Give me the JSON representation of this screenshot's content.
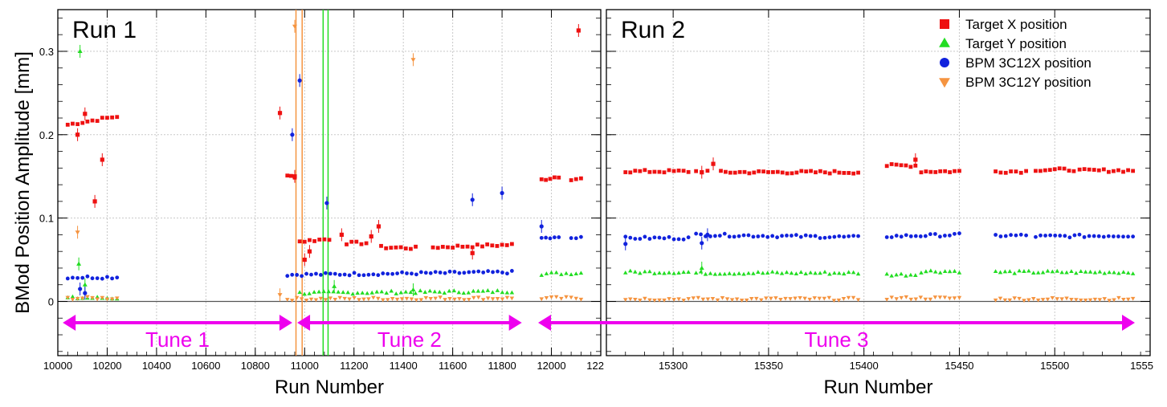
{
  "chart_data": {
    "type": "scatter",
    "ylabel": "BMod Position Amplitude [mm]",
    "ylim": [
      -0.065,
      0.35
    ],
    "yticks": [
      "0",
      "0.1",
      "0.2",
      "0.3"
    ],
    "grid": true,
    "legend": {
      "placement": "top-right",
      "entries": [
        {
          "name": "Target X position",
          "color": "#ee1111",
          "marker": "square"
        },
        {
          "name": "Target Y position",
          "color": "#22dd22",
          "marker": "triangle-up"
        },
        {
          "name": "BPM 3C12X position",
          "color": "#1122dd",
          "marker": "circle"
        },
        {
          "name": "BPM 3C12Y position",
          "color": "#f59440",
          "marker": "triangle-down"
        }
      ]
    },
    "panels": [
      {
        "run_label": "Run 1",
        "xlabel": "Run Number",
        "xlim": [
          10000,
          12200
        ],
        "xticks": [
          "10000",
          "10200",
          "10400",
          "10600",
          "10800",
          "11000",
          "11200",
          "11400",
          "11600",
          "11800",
          "12000",
          "122"
        ],
        "series": [
          {
            "name": "Target X position",
            "segments": [
              {
                "x": [
                  10040,
                  10240
                ],
                "y": [
                  0.212,
                  0.222
                ]
              },
              {
                "x": [
                  10930,
                  10960
                ],
                "y": [
                  0.15,
                  0.15
                ]
              },
              {
                "x": [
                  10980,
                  11100
                ],
                "y": [
                  0.072,
                  0.075
                ]
              },
              {
                "x": [
                  11170,
                  11250
                ],
                "y": [
                  0.07,
                  0.07
                ]
              },
              {
                "x": [
                  11310,
                  11450
                ],
                "y": [
                  0.065,
                  0.064
                ]
              },
              {
                "x": [
                  11520,
                  11840
                ],
                "y": [
                  0.065,
                  0.068
                ]
              },
              {
                "x": [
                  11960,
                  12030
                ],
                "y": [
                  0.146,
                  0.15
                ]
              },
              {
                "x": [
                  12080,
                  12120
                ],
                "y": [
                  0.147,
                  0.147
                ]
              }
            ],
            "points": [
              {
                "x": 10080,
                "y": 0.2
              },
              {
                "x": 10110,
                "y": 0.225
              },
              {
                "x": 10150,
                "y": 0.12
              },
              {
                "x": 10180,
                "y": 0.17
              },
              {
                "x": 10900,
                "y": 0.226
              },
              {
                "x": 10960,
                "y": 0.15
              },
              {
                "x": 11000,
                "y": 0.05
              },
              {
                "x": 11020,
                "y": 0.06
              },
              {
                "x": 11150,
                "y": 0.08
              },
              {
                "x": 11270,
                "y": 0.078
              },
              {
                "x": 11300,
                "y": 0.09
              },
              {
                "x": 11680,
                "y": 0.058
              },
              {
                "x": 12110,
                "y": 0.325
              }
            ]
          },
          {
            "name": "Target Y position",
            "segments": [
              {
                "x": [
                  10040,
                  10240
                ],
                "y": [
                  0.004,
                  0.004
                ]
              },
              {
                "x": [
                  10980,
                  11840
                ],
                "y": [
                  0.01,
                  0.012
                ]
              },
              {
                "x": [
                  11960,
                  12120
                ],
                "y": [
                  0.033,
                  0.034
                ]
              }
            ],
            "points": [
              {
                "x": 10090,
                "y": 0.3
              },
              {
                "x": 10085,
                "y": 0.045
              },
              {
                "x": 10110,
                "y": 0.02
              },
              {
                "x": 11120,
                "y": 0.018
              },
              {
                "x": 11440,
                "y": 0.014
              }
            ]
          },
          {
            "name": "BPM 3C12X position",
            "segments": [
              {
                "x": [
                  10040,
                  10240
                ],
                "y": [
                  0.029,
                  0.029
                ]
              },
              {
                "x": [
                  10930,
                  11840
                ],
                "y": [
                  0.032,
                  0.035
                ]
              },
              {
                "x": [
                  11960,
                  12030
                ],
                "y": [
                  0.076,
                  0.076
                ]
              },
              {
                "x": [
                  12080,
                  12120
                ],
                "y": [
                  0.076,
                  0.076
                ]
              }
            ],
            "points": [
              {
                "x": 10090,
                "y": 0.015
              },
              {
                "x": 10110,
                "y": 0.01
              },
              {
                "x": 10950,
                "y": 0.2
              },
              {
                "x": 10980,
                "y": 0.265
              },
              {
                "x": 11090,
                "y": 0.118
              },
              {
                "x": 11680,
                "y": 0.122
              },
              {
                "x": 11800,
                "y": 0.13
              },
              {
                "x": 11960,
                "y": 0.09
              }
            ]
          },
          {
            "name": "BPM 3C12Y position",
            "segments": [
              {
                "x": [
                  10040,
                  10240
                ],
                "y": [
                  0.004,
                  0.004
                ]
              },
              {
                "x": [
                  10930,
                  11840
                ],
                "y": [
                  0.003,
                  0.004
                ]
              },
              {
                "x": [
                  11960,
                  12120
                ],
                "y": [
                  0.004,
                  0.004
                ]
              }
            ],
            "points": [
              {
                "x": 10080,
                "y": 0.083
              },
              {
                "x": 10960,
                "y": 0.33
              },
              {
                "x": 11440,
                "y": 0.29
              },
              {
                "x": 10900,
                "y": 0.008
              }
            ]
          }
        ],
        "annotations": [
          {
            "label": "Tune 1",
            "from": 10020,
            "to": 10950
          },
          {
            "label": "Tune 2",
            "from": 10970,
            "to": 11880
          }
        ]
      },
      {
        "run_label": "Run 2",
        "xlabel": "Run Number",
        "xlim": [
          15265,
          15550
        ],
        "xticks": [
          "15300",
          "15350",
          "15400",
          "15450",
          "15500",
          "1555"
        ],
        "series": [
          {
            "name": "Target X position",
            "segments": [
              {
                "x": [
                  15275,
                  15308
                ],
                "y": [
                  0.156,
                  0.156
                ]
              },
              {
                "x": [
                  15312,
                  15318
                ],
                "y": [
                  0.156,
                  0.156
                ]
              },
              {
                "x": [
                  15325,
                  15397
                ],
                "y": [
                  0.155,
                  0.155
                ]
              },
              {
                "x": [
                  15412,
                  15427
                ],
                "y": [
                  0.163,
                  0.163
                ]
              },
              {
                "x": [
                  15430,
                  15450
                ],
                "y": [
                  0.156,
                  0.156
                ]
              },
              {
                "x": [
                  15469,
                  15485
                ],
                "y": [
                  0.156,
                  0.156
                ]
              },
              {
                "x": [
                  15490,
                  15510
                ],
                "y": [
                  0.158,
                  0.158
                ]
              },
              {
                "x": [
                  15513,
                  15541
                ],
                "y": [
                  0.157,
                  0.157
                ]
              }
            ],
            "points": [
              {
                "x": 15321,
                "y": 0.165
              },
              {
                "x": 15315,
                "y": 0.155
              },
              {
                "x": 15427,
                "y": 0.17
              }
            ]
          },
          {
            "name": "Target Y position",
            "segments": [
              {
                "x": [
                  15275,
                  15308
                ],
                "y": [
                  0.035,
                  0.035
                ]
              },
              {
                "x": [
                  15312,
                  15397
                ],
                "y": [
                  0.034,
                  0.034
                ]
              },
              {
                "x": [
                  15412,
                  15427
                ],
                "y": [
                  0.032,
                  0.032
                ]
              },
              {
                "x": [
                  15430,
                  15450
                ],
                "y": [
                  0.036,
                  0.036
                ]
              },
              {
                "x": [
                  15469,
                  15541
                ],
                "y": [
                  0.035,
                  0.035
                ]
              }
            ],
            "points": [
              {
                "x": 15315,
                "y": 0.04
              }
            ]
          },
          {
            "name": "BPM 3C12X position",
            "segments": [
              {
                "x": [
                  15275,
                  15308
                ],
                "y": [
                  0.076,
                  0.076
                ]
              },
              {
                "x": [
                  15312,
                  15397
                ],
                "y": [
                  0.08,
                  0.077
                ]
              },
              {
                "x": [
                  15412,
                  15450
                ],
                "y": [
                  0.078,
                  0.08
                ]
              },
              {
                "x": [
                  15469,
                  15485
                ],
                "y": [
                  0.079,
                  0.079
                ]
              },
              {
                "x": [
                  15490,
                  15541
                ],
                "y": [
                  0.078,
                  0.079
                ]
              }
            ],
            "points": [
              {
                "x": 15275,
                "y": 0.069
              },
              {
                "x": 15315,
                "y": 0.07
              },
              {
                "x": 15318,
                "y": 0.08
              }
            ]
          },
          {
            "name": "BPM 3C12Y position",
            "segments": [
              {
                "x": [
                  15275,
                  15397
                ],
                "y": [
                  0.003,
                  0.003
                ]
              },
              {
                "x": [
                  15412,
                  15450
                ],
                "y": [
                  0.004,
                  0.004
                ]
              },
              {
                "x": [
                  15469,
                  15541
                ],
                "y": [
                  0.003,
                  0.003
                ]
              }
            ],
            "points": []
          }
        ],
        "annotations": [
          {
            "label": "Tune 3",
            "from": null,
            "to": null
          }
        ]
      }
    ]
  }
}
